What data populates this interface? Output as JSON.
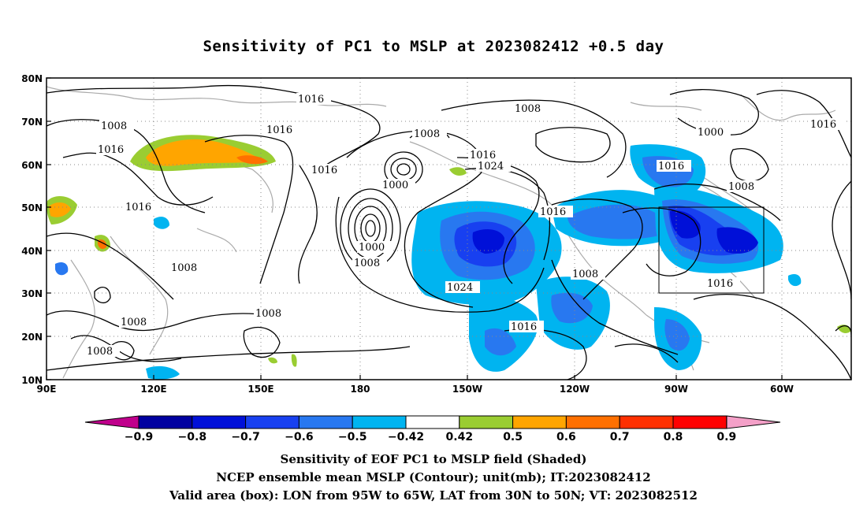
{
  "title": "Sensitivity of PC1 to MSLP at 2023082412 +0.5 day",
  "map": {
    "lat_labels": [
      "80N",
      "70N",
      "60N",
      "50N",
      "40N",
      "30N",
      "20N",
      "10N"
    ],
    "lon_labels": [
      "90E",
      "120E",
      "150E",
      "180",
      "150W",
      "120W",
      "90W",
      "60W"
    ],
    "contour_labels": [
      "1016",
      "1016",
      "1016",
      "1016",
      "1016",
      "1016",
      "1016",
      "1016",
      "1016",
      "1008",
      "1008",
      "1008",
      "1008",
      "1008",
      "1008",
      "1008",
      "1008",
      "1008",
      "1008",
      "1000",
      "1000",
      "1000",
      "1024",
      "1024"
    ],
    "valid_box": {
      "lon_from": "95W",
      "lon_to": "65W",
      "lat_from": "30N",
      "lat_to": "50N"
    }
  },
  "colorbar": {
    "labels": [
      "-0.9",
      "-0.8",
      "-0.7",
      "-0.6",
      "-0.5",
      "-0.42",
      "0.42",
      "0.5",
      "0.6",
      "0.7",
      "0.8",
      "0.9"
    ],
    "colors": [
      "#c0008c",
      "#0000a0",
      "#0010d8",
      "#1840f0",
      "#2878f0",
      "#00b4f0",
      "#ffffff",
      "#9acd32",
      "#ffa500",
      "#ff7000",
      "#ff3000",
      "#ff0000",
      "#f4a0c8"
    ]
  },
  "caption": {
    "line1": "Sensitivity of EOF PC1 to MSLP field (Shaded)",
    "line2": "NCEP ensemble mean MSLP (Contour); unit(mb); IT:2023082412",
    "line3": "Valid area (box): LON from 95W to 65W, LAT from 30N to 50N; VT: 2023082512"
  }
}
